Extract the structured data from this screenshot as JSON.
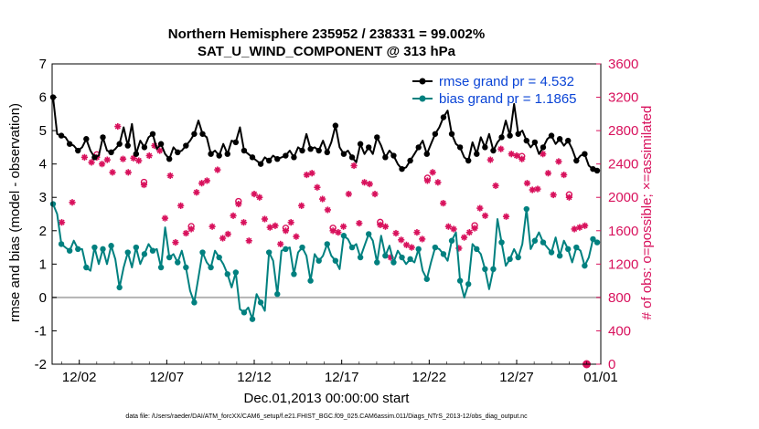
{
  "chart_data": {
    "type": "line",
    "title": "Northern Hemisphere 235952 / 238331 = 99.002%",
    "subtitle": "SAT_U_WIND_COMPONENT @ 313 hPa",
    "xlabel": "Dec.01,2013 00:00:00 start",
    "ylabel_left": "rmse and bias (model - observation)",
    "ylabel_right": "# of obs: o=possible; ×=assimilated",
    "x_ticks": [
      "12/02",
      "12/07",
      "12/12",
      "12/17",
      "12/22",
      "12/27",
      "01/01"
    ],
    "ylim_left": [
      -2,
      7
    ],
    "yticks_left": [
      "-2",
      "-1",
      "0",
      "1",
      "2",
      "3",
      "4",
      "5",
      "6",
      "7"
    ],
    "ylim_right": [
      0,
      3600
    ],
    "yticks_right": [
      "0",
      "400",
      "800",
      "1200",
      "1600",
      "2000",
      "2400",
      "2800",
      "3200",
      "3600"
    ],
    "footnote": "data file: /Users/raeder/DAI/ATM_forcXX/CAM6_setup/f.e21.FHIST_BGC.f09_025.CAM6assim.011/Diags_NTrS_2013-12/obs_diag_output.nc",
    "colors": {
      "rmse": "#000000",
      "bias": "#00807f",
      "obs": "#d8115c",
      "legend_text": "#0a44d6",
      "zero_line": "#b3b3b3"
    },
    "series": [
      {
        "name": "rmse grand pr = 4.532",
        "axis": "left",
        "values": [
          6.0,
          4.9,
          4.85,
          4.8,
          4.6,
          4.55,
          4.4,
          4.5,
          4.75,
          4.4,
          4.2,
          4.25,
          4.8,
          4.4,
          4.35,
          4.45,
          4.6,
          5.1,
          4.55,
          5.2,
          4.3,
          4.7,
          4.5,
          4.8,
          4.9,
          4.45,
          4.6,
          4.3,
          4.15,
          4.5,
          4.35,
          4.4,
          4.55,
          4.7,
          4.9,
          5.3,
          4.9,
          4.8,
          4.3,
          4.4,
          4.25,
          4.6,
          4.3,
          4.7,
          4.65,
          5.1,
          4.4,
          4.3,
          4.2,
          4.1,
          4.0,
          4.2,
          4.1,
          4.25,
          4.15,
          4.2,
          4.25,
          4.4,
          4.2,
          4.5,
          4.4,
          4.9,
          4.45,
          4.5,
          4.4,
          4.7,
          4.35,
          4.65,
          5.15,
          4.5,
          4.3,
          4.4,
          4.2,
          4.05,
          4.6,
          4.3,
          4.5,
          4.3,
          4.8,
          4.55,
          4.2,
          4.4,
          4.25,
          4.0,
          3.85,
          3.9,
          4.1,
          4.3,
          4.5,
          4.7,
          4.3,
          4.6,
          4.9,
          5.1,
          5.4,
          5.6,
          4.9,
          4.6,
          4.5,
          4.2,
          4.1,
          4.65,
          4.3,
          4.8,
          4.5,
          4.9,
          4.4,
          4.65,
          4.8,
          5.3,
          4.85,
          5.8,
          4.9,
          5.0,
          4.7,
          4.5,
          4.65,
          4.3,
          4.5,
          4.75,
          4.85,
          4.6,
          4.75,
          4.55,
          4.7,
          4.45,
          4.1,
          4.25,
          4.3,
          3.95,
          3.85,
          3.8
        ],
        "markers": [
          0,
          2,
          4,
          6,
          8,
          10,
          12,
          14,
          16,
          18,
          20,
          22,
          24,
          26,
          28,
          30,
          32,
          34,
          36,
          38,
          40,
          42,
          44,
          46,
          48,
          50,
          52,
          54,
          56,
          58,
          60,
          62,
          64,
          66,
          68,
          70,
          72,
          74,
          76,
          78,
          80,
          82,
          84,
          86,
          88,
          90,
          92,
          94,
          96,
          98,
          100,
          102,
          104,
          106,
          108,
          110,
          112,
          114,
          116,
          118,
          120,
          122,
          124,
          126,
          128,
          130,
          131
        ]
      },
      {
        "name": "bias grand pr = 1.1865",
        "axis": "left",
        "values": [
          2.8,
          2.5,
          1.6,
          1.5,
          1.4,
          1.7,
          1.45,
          1.45,
          0.9,
          0.8,
          1.5,
          1.0,
          1.45,
          1.0,
          1.55,
          1.15,
          0.3,
          0.9,
          1.35,
          0.9,
          1.5,
          1.0,
          1.3,
          1.6,
          1.4,
          1.45,
          0.9,
          2.1,
          1.2,
          1.3,
          1.05,
          1.4,
          0.9,
          0.2,
          -0.15,
          0.6,
          1.35,
          1.05,
          0.9,
          1.4,
          1.2,
          1.0,
          0.7,
          0.3,
          0.75,
          -0.35,
          -0.45,
          -0.3,
          -0.65,
          0.1,
          -0.15,
          -0.4,
          1.35,
          1.1,
          0.1,
          1.4,
          1.45,
          1.5,
          0.7,
          1.35,
          1.5,
          1.25,
          0.5,
          1.3,
          1.1,
          1.25,
          1.6,
          1.25,
          1.1,
          0.85,
          1.85,
          1.75,
          1.5,
          1.6,
          1.2,
          1.55,
          1.9,
          1.7,
          1.05,
          1.85,
          1.25,
          1.55,
          1.05,
          1.4,
          1.2,
          1.0,
          1.15,
          1.05,
          1.45,
          0.8,
          0.55,
          1.05,
          1.5,
          1.45,
          1.3,
          1.1,
          1.7,
          1.95,
          0.5,
          0.0,
          0.4,
          1.6,
          1.45,
          1.3,
          0.85,
          0.25,
          0.85,
          2.35,
          1.65,
          0.95,
          1.15,
          1.45,
          1.2,
          1.6,
          2.65,
          1.45,
          1.7,
          1.95,
          1.65,
          1.5,
          1.35,
          1.8,
          1.25,
          1.7,
          1.45,
          1.05,
          1.5,
          1.4,
          0.95,
          1.2,
          1.75,
          1.65
        ],
        "markers": [
          0,
          2,
          4,
          6,
          8,
          10,
          12,
          14,
          16,
          18,
          20,
          22,
          24,
          26,
          28,
          30,
          32,
          34,
          36,
          38,
          40,
          42,
          44,
          46,
          48,
          50,
          52,
          54,
          56,
          58,
          60,
          62,
          64,
          66,
          68,
          70,
          72,
          74,
          76,
          78,
          80,
          82,
          84,
          86,
          88,
          90,
          92,
          94,
          96,
          98,
          100,
          102,
          104,
          106,
          108,
          110,
          112,
          114,
          116,
          118,
          120,
          122,
          124,
          126,
          128,
          130,
          131
        ]
      }
    ],
    "obs": {
      "axis": "right",
      "x_days": [
        1.0,
        1.6,
        2.3,
        2.7,
        3.0,
        3.3,
        3.6,
        3.9,
        4.2,
        4.5,
        4.8,
        5.1,
        5.4,
        5.7,
        6.0,
        6.3,
        6.6,
        6.9,
        7.2,
        7.5,
        7.8,
        8.1,
        8.4,
        8.7,
        9.0,
        9.3,
        9.6,
        9.9,
        10.2,
        10.5,
        10.8,
        11.1,
        11.4,
        11.7,
        12.0,
        12.3,
        12.6,
        12.9,
        13.2,
        13.5,
        13.8,
        14.1,
        14.4,
        14.7,
        15.0,
        15.3,
        15.6,
        15.9,
        16.2,
        16.5,
        16.8,
        17.1,
        17.4,
        17.7,
        18.0,
        18.3,
        18.6,
        18.9,
        19.2,
        19.5,
        19.8,
        20.1,
        20.4,
        20.7,
        21.0,
        21.3,
        21.6,
        21.9,
        22.2,
        22.5,
        22.8,
        23.1,
        23.4,
        23.7,
        24.0,
        24.3,
        24.6,
        24.9,
        25.2,
        25.5,
        25.8,
        26.1,
        26.4,
        26.7,
        27.0,
        27.3,
        27.6,
        27.9,
        28.2,
        28.5,
        28.8,
        29.1,
        29.4,
        29.7,
        30.0,
        30.3,
        30.6,
        30.9,
        31.0
      ],
      "counts": [
        1700,
        1940,
        2480,
        2420,
        2480,
        2400,
        2450,
        2300,
        2850,
        2460,
        2300,
        2470,
        2440,
        2150,
        2500,
        2620,
        2560,
        1750,
        2260,
        1460,
        1900,
        1570,
        1620,
        2060,
        2170,
        2200,
        1650,
        2330,
        1510,
        1560,
        1780,
        1920,
        1700,
        1480,
        2040,
        2000,
        1740,
        1640,
        1660,
        1440,
        1600,
        1700,
        1530,
        1900,
        2270,
        2290,
        2120,
        1980,
        1850,
        1600,
        1580,
        1650,
        2040,
        2380,
        1690,
        2180,
        2160,
        2040,
        1670,
        1650,
        1280,
        1570,
        1490,
        1430,
        1400,
        1580,
        1500,
        2200,
        2300,
        2180,
        1930,
        1650,
        1620,
        1390,
        1520,
        1580,
        1630,
        1870,
        1780,
        2450,
        2140,
        2580,
        1770,
        2520,
        2500,
        2460,
        2170,
        2090,
        2100,
        2520,
        2290,
        2030,
        2430,
        2270,
        2000,
        1620,
        1640,
        1660,
        0
      ]
    }
  }
}
